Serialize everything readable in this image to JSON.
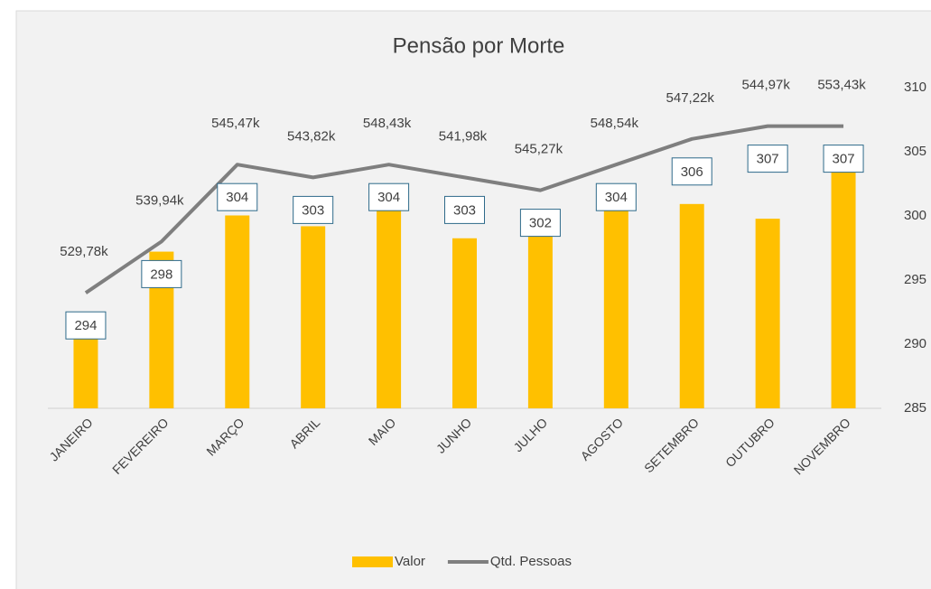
{
  "chart_data": {
    "type": "bar_line",
    "title": "Pensão por Morte",
    "categories": [
      "JANEIRO",
      "FEVEREIRO",
      "MARÇO",
      "ABRIL",
      "MAIO",
      "JUNHO",
      "JULHO",
      "AGOSTO",
      "SETEMBRO",
      "OUTUBRO",
      "NOVEMBRO"
    ],
    "series": [
      {
        "name": "Valor",
        "color": "#ffc000",
        "type": "bar",
        "axis": "y",
        "values": [
          529780,
          539940,
          545470,
          543820,
          548430,
          541980,
          545270,
          548540,
          547220,
          544970,
          553430
        ],
        "value_labels": [
          "529,78k",
          "539,94k",
          "545,47k",
          "543,82k",
          "548,43k",
          "541,98k",
          "545,27k",
          "548,54k",
          "547,22k",
          "544,97k",
          "553,43k"
        ]
      },
      {
        "name": "Qtd. Pessoas",
        "color": "#7f7f7f",
        "type": "line",
        "axis": "y2",
        "values": [
          294,
          298,
          304,
          303,
          304,
          303,
          302,
          304,
          306,
          307,
          307
        ]
      }
    ],
    "ylim": [
      516000,
      565000
    ],
    "y2lim": [
      285,
      310
    ],
    "y2ticks": [
      285,
      290,
      295,
      300,
      305,
      310
    ],
    "legend": "bottom"
  }
}
